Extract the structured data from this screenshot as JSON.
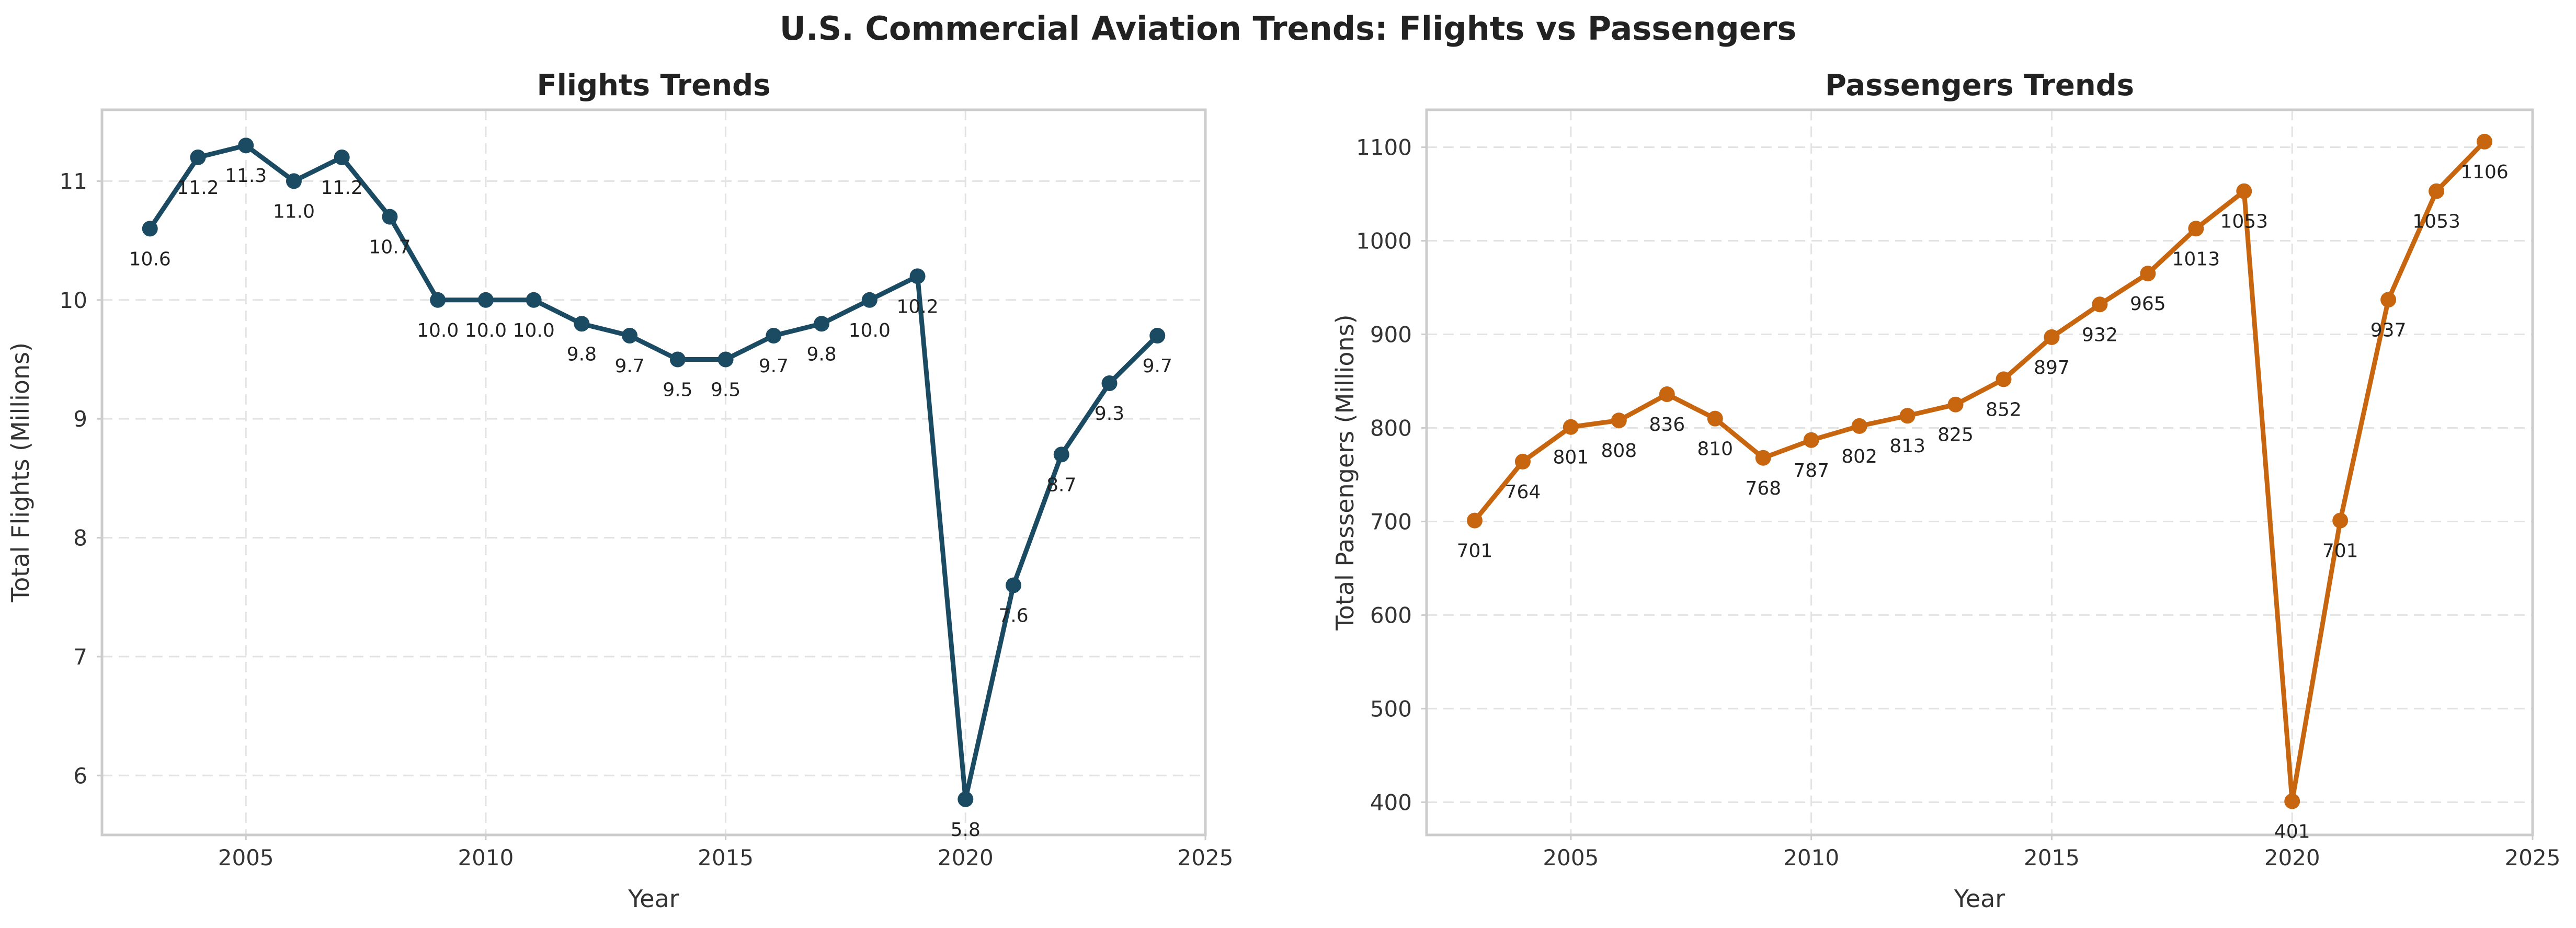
{
  "figure": {
    "title": "U.S. Commercial Aviation Trends: Flights vs Passengers"
  },
  "chart_data": [
    {
      "type": "line",
      "title": "Flights Trends",
      "xlabel": "Year",
      "ylabel": "Total Flights (Millions)",
      "color": "#1b4a63",
      "xlim": [
        2002,
        2025
      ],
      "ylim": [
        5.5,
        11.6
      ],
      "xticks": [
        2005,
        2010,
        2015,
        2020,
        2025
      ],
      "yticks": [
        6,
        7,
        8,
        9,
        10,
        11
      ],
      "grid": true,
      "x": [
        2003,
        2004,
        2005,
        2006,
        2007,
        2008,
        2009,
        2010,
        2011,
        2012,
        2013,
        2014,
        2015,
        2016,
        2017,
        2018,
        2019,
        2020,
        2021,
        2022,
        2023,
        2024
      ],
      "values": [
        10.6,
        11.2,
        11.3,
        11.0,
        11.2,
        10.7,
        10.0,
        10.0,
        10.0,
        9.8,
        9.7,
        9.5,
        9.5,
        9.7,
        9.8,
        10.0,
        10.2,
        5.8,
        7.6,
        8.7,
        9.3,
        9.7
      ],
      "labels": [
        "10.6",
        "11.2",
        "11.3",
        "11.0",
        "11.2",
        "10.7",
        "10.0",
        "10.0",
        "10.0",
        "9.8",
        "9.7",
        "9.5",
        "9.5",
        "9.7",
        "9.8",
        "10.0",
        "10.2",
        "5.8",
        "7.6",
        "8.7",
        "9.3",
        "9.7"
      ]
    },
    {
      "type": "line",
      "title": "Passengers Trends",
      "xlabel": "Year",
      "ylabel": "Total Passengers (Millions)",
      "color": "#c8650f",
      "xlim": [
        2002,
        2025
      ],
      "ylim": [
        365,
        1140
      ],
      "xticks": [
        2005,
        2010,
        2015,
        2020,
        2025
      ],
      "yticks": [
        400,
        500,
        600,
        700,
        800,
        900,
        1000,
        1100
      ],
      "grid": true,
      "x": [
        2003,
        2004,
        2005,
        2006,
        2007,
        2008,
        2009,
        2010,
        2011,
        2012,
        2013,
        2014,
        2015,
        2016,
        2017,
        2018,
        2019,
        2020,
        2021,
        2022,
        2023,
        2024
      ],
      "values": [
        701,
        764,
        801,
        808,
        836,
        810,
        768,
        787,
        802,
        813,
        825,
        852,
        897,
        932,
        965,
        1013,
        1053,
        401,
        701,
        937,
        1053,
        1106
      ],
      "labels": [
        "701",
        "764",
        "801",
        "808",
        "836",
        "810",
        "768",
        "787",
        "802",
        "813",
        "825",
        "852",
        "897",
        "932",
        "965",
        "1013",
        "1053",
        "401",
        "701",
        "937",
        "1053",
        "1106"
      ]
    }
  ]
}
